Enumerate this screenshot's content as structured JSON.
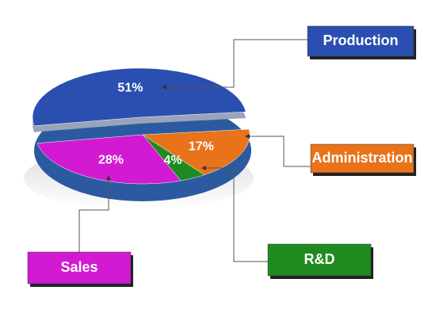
{
  "chart_data": {
    "type": "pie",
    "categories": [
      "Production",
      "Administration",
      "R&D",
      "Sales"
    ],
    "values": [
      51,
      17,
      4,
      28
    ],
    "value_labels": [
      "51%",
      "17%",
      "4%",
      "28%"
    ],
    "colors": [
      "#2a4fb0",
      "#e8731a",
      "#1f8a1f",
      "#d21ad2"
    ]
  }
}
